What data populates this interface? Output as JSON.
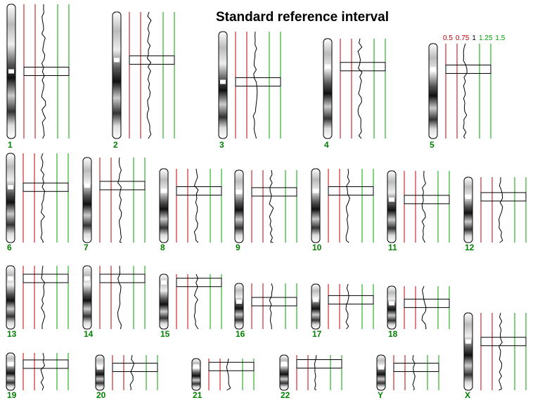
{
  "title": "Standard reference interval",
  "scale": [
    0.5,
    0.75,
    1,
    1.25,
    1.5
  ],
  "chromosomes": [
    "1",
    "2",
    "3",
    "4",
    "5",
    "6",
    "7",
    "8",
    "9",
    "10",
    "11",
    "12",
    "13",
    "14",
    "15",
    "16",
    "17",
    "18",
    "19",
    "20",
    "21",
    "22",
    "Y",
    "X"
  ]
}
